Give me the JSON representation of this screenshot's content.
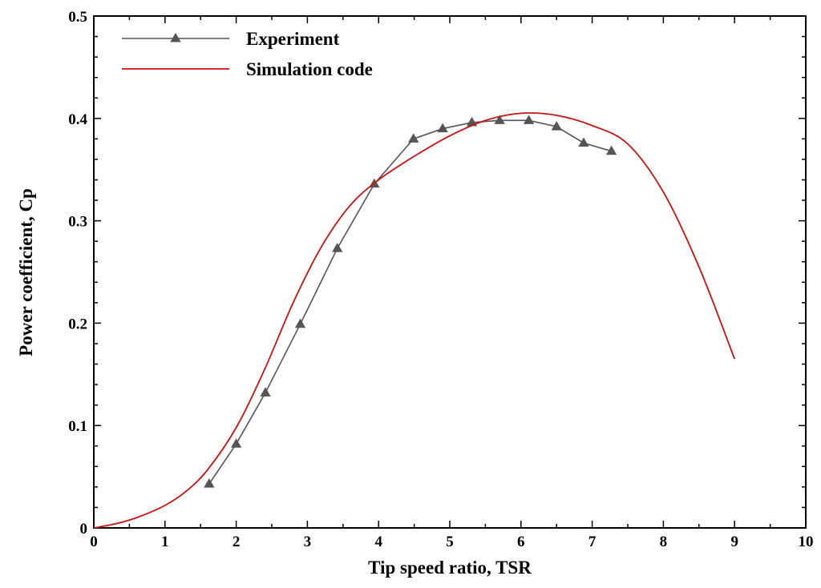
{
  "chart_data": {
    "type": "line",
    "title": "",
    "xlabel": "Tip speed ratio, TSR",
    "ylabel": "Power coefficient, Cp",
    "xlim": [
      0,
      10
    ],
    "ylim": [
      0,
      0.5
    ],
    "xticks": [
      0,
      1,
      2,
      3,
      4,
      5,
      6,
      7,
      8,
      9,
      10
    ],
    "yticks": [
      0,
      0.1,
      0.2,
      0.3,
      0.4,
      0.5
    ],
    "xtick_labels": [
      "0",
      "1",
      "2",
      "3",
      "4",
      "5",
      "6",
      "7",
      "8",
      "9",
      "10"
    ],
    "ytick_labels": [
      "0",
      "0.1",
      "0.2",
      "0.3",
      "0.4",
      "0.5"
    ],
    "grid": false,
    "legend_position": "top-left",
    "series": [
      {
        "name": "Experiment",
        "color": "#555555",
        "marker": "triangle",
        "x": [
          1.62,
          2.0,
          2.41,
          2.9,
          3.42,
          3.94,
          4.49,
          4.9,
          5.31,
          5.7,
          6.11,
          6.5,
          6.88,
          7.27
        ],
        "y": [
          0.043,
          0.082,
          0.132,
          0.199,
          0.273,
          0.336,
          0.38,
          0.39,
          0.396,
          0.398,
          0.398,
          0.392,
          0.376,
          0.368
        ]
      },
      {
        "name": "Simulation code",
        "color": "#cc1111",
        "marker": "none",
        "x": [
          0,
          0.3,
          0.6,
          1.0,
          1.3,
          1.6,
          2.0,
          2.4,
          2.8,
          3.2,
          3.6,
          4.0,
          4.5,
          5.0,
          5.5,
          6.0,
          6.5,
          7.0,
          7.5,
          8.0,
          8.5,
          9.0
        ],
        "y": [
          0,
          0.004,
          0.01,
          0.022,
          0.036,
          0.057,
          0.098,
          0.155,
          0.22,
          0.275,
          0.315,
          0.34,
          0.363,
          0.383,
          0.398,
          0.405,
          0.403,
          0.393,
          0.375,
          0.328,
          0.255,
          0.165
        ]
      }
    ]
  }
}
